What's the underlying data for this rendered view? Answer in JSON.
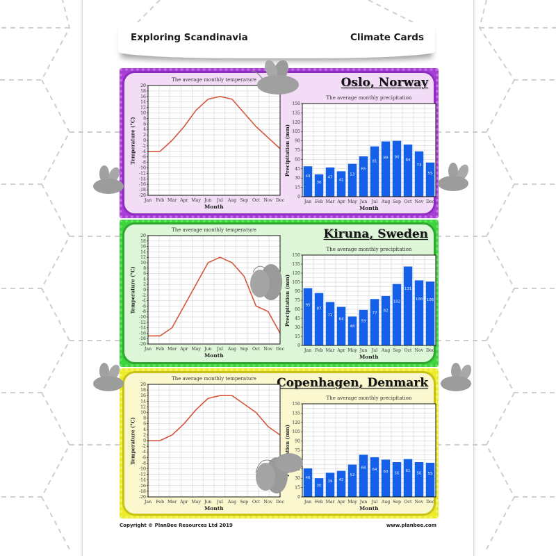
{
  "header": {
    "left_title": "Exploring Scandinavia",
    "right_title": "Climate Cards"
  },
  "footer": {
    "copyright": "Copyright © PlanBee Resources Ltd 2019",
    "website": "www.planbee.com"
  },
  "colors": {
    "temperature_line": "#d4553a",
    "precip_bar": "#1560e8",
    "oslo_border": "#a63fd4",
    "kiruna_border": "#3fd33f",
    "copenhagen_border": "#ecec2c"
  },
  "cards": [
    {
      "city": "Oslo, Norway"
    },
    {
      "city": "Kiruna, Sweden"
    },
    {
      "city": "Copenhagen, Denmark"
    }
  ],
  "chart_data": [
    {
      "type": "line",
      "card": "Oslo, Norway",
      "title": "The average monthly temperature",
      "xlabel": "Month",
      "ylabel": "Temperature (°C)",
      "ylim": [
        -20,
        20
      ],
      "yticks": [
        20,
        18,
        16,
        14,
        12,
        10,
        8,
        6,
        4,
        2,
        0,
        -2,
        -4,
        -6,
        -8,
        -10,
        -12,
        -14,
        -16,
        -18,
        -20
      ],
      "grid": true,
      "categories": [
        "Jan",
        "Feb",
        "Mar",
        "Apr",
        "May",
        "Jun",
        "Jul",
        "Aug",
        "Sep",
        "Oct",
        "Nov",
        "Dec"
      ],
      "values": [
        -4,
        -4,
        0,
        5,
        11,
        15,
        16,
        15,
        10,
        5,
        1,
        -3
      ]
    },
    {
      "type": "bar",
      "card": "Oslo, Norway",
      "title": "The average monthly precipitation",
      "xlabel": "Month",
      "ylabel": "Precipitation (mm)",
      "ylim": [
        0,
        150
      ],
      "yticks": [
        150,
        135,
        120,
        105,
        90,
        75,
        60,
        45,
        30,
        15,
        0
      ],
      "grid": true,
      "categories": [
        "Jan",
        "Feb",
        "Mar",
        "Apr",
        "May",
        "Jun",
        "Jul",
        "Aug",
        "Sep",
        "Oct",
        "Nov",
        "Dec"
      ],
      "values": [
        49,
        36,
        47,
        41,
        53,
        65,
        81,
        89,
        90,
        84,
        73,
        55
      ]
    },
    {
      "type": "line",
      "card": "Kiruna, Sweden",
      "title": "The average monthly temperature",
      "xlabel": "Month",
      "ylabel": "Temperature (°C)",
      "ylim": [
        -20,
        20
      ],
      "yticks": [
        20,
        18,
        16,
        14,
        12,
        10,
        8,
        6,
        4,
        2,
        0,
        -2,
        -4,
        -6,
        -8,
        -10,
        -12,
        -14,
        -16,
        -18,
        -20
      ],
      "grid": true,
      "categories": [
        "Jan",
        "Feb",
        "Mar",
        "Apr",
        "May",
        "Jun",
        "Jul",
        "Aug",
        "Sep",
        "Oct",
        "Nov",
        "Dec"
      ],
      "values": [
        -17,
        -17,
        -14,
        -6,
        2,
        10,
        12,
        10,
        5,
        -6,
        -8,
        -16
      ]
    },
    {
      "type": "bar",
      "card": "Kiruna, Sweden",
      "title": "The average monthly precipitation",
      "xlabel": "Month",
      "ylabel": "Precipitation (mm)",
      "ylim": [
        0,
        150
      ],
      "yticks": [
        150,
        135,
        120,
        105,
        90,
        75,
        60,
        45,
        30,
        15,
        0
      ],
      "grid": true,
      "categories": [
        "Jan",
        "Feb",
        "Mar",
        "Apr",
        "May",
        "Jun",
        "Jul",
        "Aug",
        "Sep",
        "Oct",
        "Nov",
        "Dec"
      ],
      "values": [
        95,
        87,
        72,
        64,
        48,
        59,
        77,
        82,
        102,
        131,
        108,
        106
      ]
    },
    {
      "type": "line",
      "card": "Copenhagen, Denmark",
      "title": "The average monthly temperature",
      "xlabel": "Month",
      "ylabel": "Temperature (°C)",
      "ylim": [
        -20,
        20
      ],
      "yticks": [
        20,
        18,
        16,
        14,
        12,
        10,
        8,
        6,
        4,
        2,
        0,
        -2,
        -4,
        -6,
        -8,
        -10,
        -12,
        -14,
        -16,
        -18,
        -20
      ],
      "grid": true,
      "categories": [
        "Jan",
        "Feb",
        "Mar",
        "Apr",
        "May",
        "Jun",
        "Jul",
        "Aug",
        "Sep",
        "Oct",
        "Nov",
        "Dec"
      ],
      "values": [
        0,
        0,
        2,
        6,
        11,
        15,
        16,
        16,
        13,
        10,
        5,
        2
      ]
    },
    {
      "type": "bar",
      "card": "Copenhagen, Denmark",
      "title": "The average monthly precipitation",
      "xlabel": "Month",
      "ylabel": "Precipitation (mm)",
      "ylim": [
        0,
        150
      ],
      "yticks": [
        150,
        135,
        120,
        105,
        90,
        75,
        60,
        45,
        30,
        15,
        0
      ],
      "grid": true,
      "categories": [
        "Jan",
        "Feb",
        "Mar",
        "Apr",
        "May",
        "Jun",
        "Jul",
        "Aug",
        "Sep",
        "Oct",
        "Nov",
        "Dec"
      ],
      "values": [
        46,
        30,
        39,
        42,
        52,
        68,
        64,
        60,
        56,
        61,
        56,
        55
      ]
    }
  ]
}
